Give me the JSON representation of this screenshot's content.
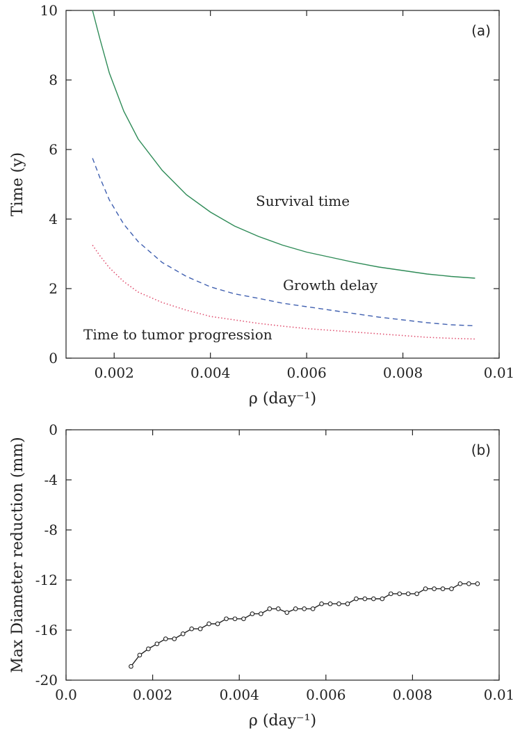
{
  "chart_data": [
    {
      "type": "line",
      "panel_label": "(a)",
      "xlabel": "ρ (day⁻¹)",
      "ylabel": "Time (y)",
      "xlim": [
        0.001,
        0.01
      ],
      "ylim": [
        0,
        10
      ],
      "xticks": [
        0.002,
        0.004,
        0.006,
        0.008,
        0.01
      ],
      "xtick_labels": [
        "0.002",
        "0.004",
        "0.006",
        "0.008",
        "0.01"
      ],
      "yticks": [
        0,
        2,
        4,
        6,
        8,
        10
      ],
      "ytick_labels": [
        "0",
        "2",
        "4",
        "6",
        "8",
        "10"
      ],
      "grid": false,
      "series": [
        {
          "name": "Survival time",
          "style": "solid",
          "color": "#2e8b57",
          "x": [
            0.00155,
            0.0017,
            0.0019,
            0.0022,
            0.0025,
            0.003,
            0.0035,
            0.004,
            0.0045,
            0.005,
            0.0055,
            0.006,
            0.0065,
            0.007,
            0.0075,
            0.008,
            0.0085,
            0.009,
            0.0095
          ],
          "y": [
            10.0,
            9.2,
            8.2,
            7.1,
            6.3,
            5.4,
            4.7,
            4.2,
            3.8,
            3.5,
            3.25,
            3.05,
            2.9,
            2.75,
            2.62,
            2.52,
            2.42,
            2.35,
            2.3
          ]
        },
        {
          "name": "Growth delay",
          "style": "dashed",
          "color": "#4060b0",
          "x": [
            0.00155,
            0.0017,
            0.0019,
            0.0022,
            0.0025,
            0.003,
            0.0035,
            0.004,
            0.0045,
            0.005,
            0.0055,
            0.006,
            0.0065,
            0.007,
            0.0075,
            0.008,
            0.0085,
            0.009,
            0.0095
          ],
          "y": [
            5.75,
            5.2,
            4.55,
            3.85,
            3.35,
            2.75,
            2.35,
            2.05,
            1.85,
            1.72,
            1.58,
            1.48,
            1.38,
            1.28,
            1.18,
            1.1,
            1.02,
            0.96,
            0.93
          ]
        },
        {
          "name": "Time to tumor progression",
          "style": "dotted",
          "color": "#e05070",
          "x": [
            0.00155,
            0.0017,
            0.0019,
            0.0022,
            0.0025,
            0.003,
            0.0035,
            0.004,
            0.0045,
            0.005,
            0.0055,
            0.006,
            0.0065,
            0.007,
            0.0075,
            0.008,
            0.0085,
            0.009,
            0.0095
          ],
          "y": [
            3.25,
            2.95,
            2.6,
            2.2,
            1.9,
            1.6,
            1.38,
            1.2,
            1.1,
            1.0,
            0.92,
            0.85,
            0.8,
            0.75,
            0.7,
            0.65,
            0.6,
            0.57,
            0.55
          ]
        }
      ]
    },
    {
      "type": "line",
      "panel_label": "(b)",
      "xlabel": "ρ (day⁻¹)",
      "ylabel": "Max Diameter reduction (mm)",
      "xlim": [
        0.0,
        0.01
      ],
      "ylim": [
        -20,
        0
      ],
      "xticks": [
        0.0,
        0.002,
        0.004,
        0.006,
        0.008,
        0.01
      ],
      "xtick_labels": [
        "0.0",
        "0.002",
        "0.004",
        "0.006",
        "0.008",
        "0.01"
      ],
      "yticks": [
        0,
        -4,
        -8,
        -12,
        -16,
        -20
      ],
      "ytick_labels": [
        "0",
        "-4",
        "-8",
        "-12",
        "-16",
        "-20"
      ],
      "grid": false,
      "series": [
        {
          "name": "",
          "style": "solid-markers",
          "color": "#222222",
          "x": [
            0.0015,
            0.0017,
            0.0019,
            0.0021,
            0.0023,
            0.0025,
            0.0027,
            0.0029,
            0.0031,
            0.0033,
            0.0035,
            0.0037,
            0.0039,
            0.0041,
            0.0043,
            0.0045,
            0.0047,
            0.0049,
            0.0051,
            0.0053,
            0.0055,
            0.0057,
            0.0059,
            0.0061,
            0.0063,
            0.0065,
            0.0067,
            0.0069,
            0.0071,
            0.0073,
            0.0075,
            0.0077,
            0.0079,
            0.0081,
            0.0083,
            0.0085,
            0.0087,
            0.0089,
            0.0091,
            0.0093,
            0.0095
          ],
          "y": [
            -18.9,
            -18.0,
            -17.5,
            -17.1,
            -16.7,
            -16.7,
            -16.3,
            -15.9,
            -15.9,
            -15.5,
            -15.5,
            -15.1,
            -15.1,
            -15.1,
            -14.7,
            -14.7,
            -14.3,
            -14.3,
            -14.6,
            -14.3,
            -14.3,
            -14.3,
            -13.9,
            -13.9,
            -13.9,
            -13.9,
            -13.5,
            -13.5,
            -13.5,
            -13.5,
            -13.1,
            -13.1,
            -13.1,
            -13.1,
            -12.7,
            -12.7,
            -12.7,
            -12.7,
            -12.3,
            -12.3,
            -12.3
          ]
        }
      ]
    }
  ]
}
